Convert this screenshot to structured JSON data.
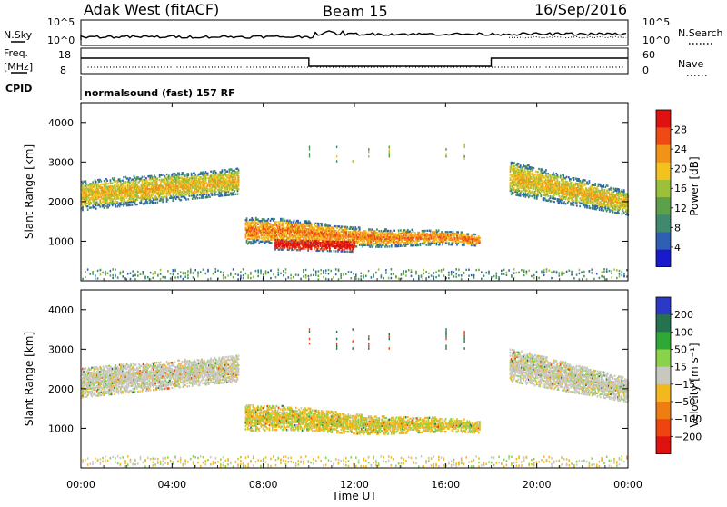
{
  "header": {
    "station": "Adak West (fitACF)",
    "beam": "Beam 15",
    "date": "16/Sep/2016"
  },
  "top_panels": {
    "nsky_label": "N.Sky",
    "nsky_ticks": [
      "10^5",
      "10^0"
    ],
    "nsearch_label": "N.Search",
    "nsearch_ticks": [
      "10^5",
      "10^0"
    ],
    "freq_label": "Freq.",
    "freq_unit": "[MHz]",
    "freq_ticks": [
      "18",
      "8"
    ],
    "nave_label": "Nave",
    "nave_ticks": [
      "60",
      "0"
    ],
    "cpid_label": "CPID",
    "cpid_text": "normalsound (fast) 157 RF"
  },
  "chart_data": [
    {
      "type": "heatmap",
      "panel": "power",
      "ylabel": "Slant Range [km]",
      "xlabel": "",
      "x_ticks": [
        "00:00",
        "04:00",
        "08:00",
        "12:00",
        "16:00",
        "20:00",
        "00:00"
      ],
      "y_ticks": [
        "1000",
        "2000",
        "3000",
        "4000"
      ],
      "ylim": [
        0,
        4500
      ],
      "xlim_hours": [
        0,
        24
      ],
      "colorbar": {
        "label": "Power [dB]",
        "ticks": [
          "4",
          "8",
          "12",
          "16",
          "20",
          "24",
          "28"
        ],
        "range": [
          0,
          30
        ],
        "colors": [
          "#1a1acd",
          "#2f5fb3",
          "#3f8a6f",
          "#5ca04a",
          "#9dc03a",
          "#f2c21f",
          "#f29319",
          "#ef4a16",
          "#e0120f"
        ]
      },
      "regions": [
        {
          "t0": 0.0,
          "t1": 6.9,
          "r0": 1650,
          "r1": 3000,
          "level": 14
        },
        {
          "t0": 7.2,
          "t1": 17.5,
          "r0": 650,
          "r1": 1750,
          "level": 18
        },
        {
          "t0": 8.5,
          "t1": 12.0,
          "r0": 750,
          "r1": 1100,
          "level": 26
        },
        {
          "t0": 18.8,
          "t1": 24.0,
          "r0": 1400,
          "r1": 3200,
          "level": 14
        }
      ]
    },
    {
      "type": "heatmap",
      "panel": "velocity",
      "ylabel": "Slant Range [km]",
      "xlabel": "Time UT",
      "x_ticks": [
        "00:00",
        "04:00",
        "08:00",
        "12:00",
        "16:00",
        "20:00",
        "00:00"
      ],
      "y_ticks": [
        "1000",
        "2000",
        "3000",
        "4000"
      ],
      "ylim": [
        0,
        4500
      ],
      "xlim_hours": [
        0,
        24
      ],
      "colorbar": {
        "label": "Velocity [m s⁻¹]",
        "ticks": [
          "200",
          "100",
          "50",
          "15",
          "−15",
          "−50",
          "−100",
          "−200"
        ],
        "colors": [
          "#2a39c6",
          "#26714e",
          "#2fa838",
          "#89d24a",
          "#c8c8c0",
          "#f2b81e",
          "#ef7e12",
          "#ee4412",
          "#e0120f"
        ]
      },
      "regions": [
        {
          "t0": 0.0,
          "t1": 6.9,
          "r0": 1650,
          "r1": 3000,
          "velocity": 0
        },
        {
          "t0": 7.2,
          "t1": 17.5,
          "r0": 650,
          "r1": 1750,
          "velocity": -30
        },
        {
          "t0": 18.8,
          "t1": 24.0,
          "r0": 1400,
          "r1": 3200,
          "velocity": 0
        }
      ]
    }
  ]
}
